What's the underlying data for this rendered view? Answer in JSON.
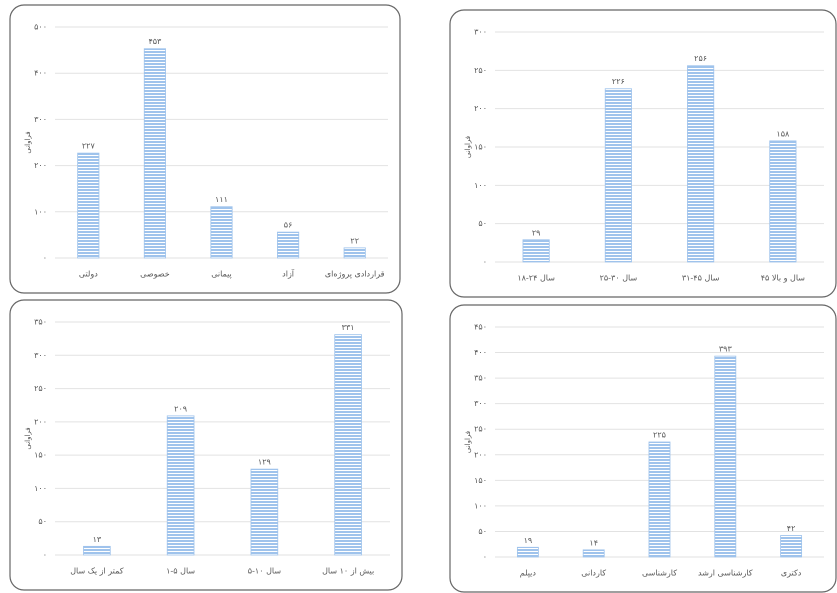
{
  "chart_data": [
    {
      "type": "bar",
      "y_label": "فراوانی",
      "categories": [
        "دولتی",
        "خصوصی",
        "پیمانی",
        "آزاد",
        "قراردادی پروژه‌ای"
      ],
      "values": [
        227,
        453,
        111,
        56,
        22
      ],
      "value_labels": [
        "۲۲۷",
        "۴۵۳",
        "۱۱۱",
        "۵۶",
        "۲۲"
      ],
      "color": "#9fc3ec",
      "grid": true,
      "ylim": [
        0,
        500
      ],
      "yticks": [
        {
          "value": 0,
          "label": "۰"
        },
        {
          "value": 100,
          "label": "۱۰۰"
        },
        {
          "value": 200,
          "label": "۲۰۰"
        },
        {
          "value": 300,
          "label": "۳۰۰"
        },
        {
          "value": 400,
          "label": "۴۰۰"
        },
        {
          "value": 500,
          "label": "۵۰۰"
        }
      ]
    },
    {
      "type": "bar",
      "y_label": "فراوانی",
      "categories": [
        "۱۸-۲۴ سال",
        "۲۵-۳۰ سال",
        "۳۱-۴۵ سال",
        "۴۵ سال و بالا"
      ],
      "values": [
        29,
        226,
        256,
        158
      ],
      "value_labels": [
        "۲۹",
        "۲۲۶",
        "۲۵۶",
        "۱۵۸"
      ],
      "color": "#9fc3ec",
      "grid": true,
      "ylim": [
        0,
        300
      ],
      "yticks": [
        {
          "value": 0,
          "label": "۰"
        },
        {
          "value": 50,
          "label": "۵۰"
        },
        {
          "value": 100,
          "label": "۱۰۰"
        },
        {
          "value": 150,
          "label": "۱۵۰"
        },
        {
          "value": 200,
          "label": "۲۰۰"
        },
        {
          "value": 250,
          "label": "۲۵۰"
        },
        {
          "value": 300,
          "label": "۳۰۰"
        }
      ]
    },
    {
      "type": "bar",
      "y_label": "فراوانی",
      "categories": [
        "کمتر از یک سال",
        "۱-۵ سال",
        "۵-۱۰ سال",
        "بیش از ۱۰ سال"
      ],
      "values": [
        13,
        209,
        129,
        331
      ],
      "value_labels": [
        "۱۳",
        "۲۰۹",
        "۱۲۹",
        "۳۳۱"
      ],
      "color": "#9fc3ec",
      "grid": true,
      "ylim": [
        0,
        350
      ],
      "yticks": [
        {
          "value": 0,
          "label": "۰"
        },
        {
          "value": 50,
          "label": "۵۰"
        },
        {
          "value": 100,
          "label": "۱۰۰"
        },
        {
          "value": 150,
          "label": "۱۵۰"
        },
        {
          "value": 200,
          "label": "۲۰۰"
        },
        {
          "value": 250,
          "label": "۲۵۰"
        },
        {
          "value": 300,
          "label": "۳۰۰"
        },
        {
          "value": 350,
          "label": "۳۵۰"
        }
      ]
    },
    {
      "type": "bar",
      "y_label": "فراوانی",
      "categories": [
        "دیپلم",
        "کاردانی",
        "کارشناسی",
        "کارشناسی ارشد",
        "دکتری"
      ],
      "values": [
        19,
        14,
        225,
        393,
        42
      ],
      "value_labels": [
        "۱۹",
        "۱۴",
        "۲۲۵",
        "۳۹۳",
        "۴۲"
      ],
      "color": "#9fc3ec",
      "grid": true,
      "ylim": [
        0,
        450
      ],
      "yticks": [
        {
          "value": 0,
          "label": "۰"
        },
        {
          "value": 50,
          "label": "۵۰"
        },
        {
          "value": 100,
          "label": "۱۰۰"
        },
        {
          "value": 150,
          "label": "۱۵۰"
        },
        {
          "value": 200,
          "label": "۲۰۰"
        },
        {
          "value": 250,
          "label": "۲۵۰"
        },
        {
          "value": 300,
          "label": "۳۰۰"
        },
        {
          "value": 350,
          "label": "۳۵۰"
        },
        {
          "value": 400,
          "label": "۴۰۰"
        },
        {
          "value": 450,
          "label": "۴۵۰"
        }
      ]
    }
  ]
}
